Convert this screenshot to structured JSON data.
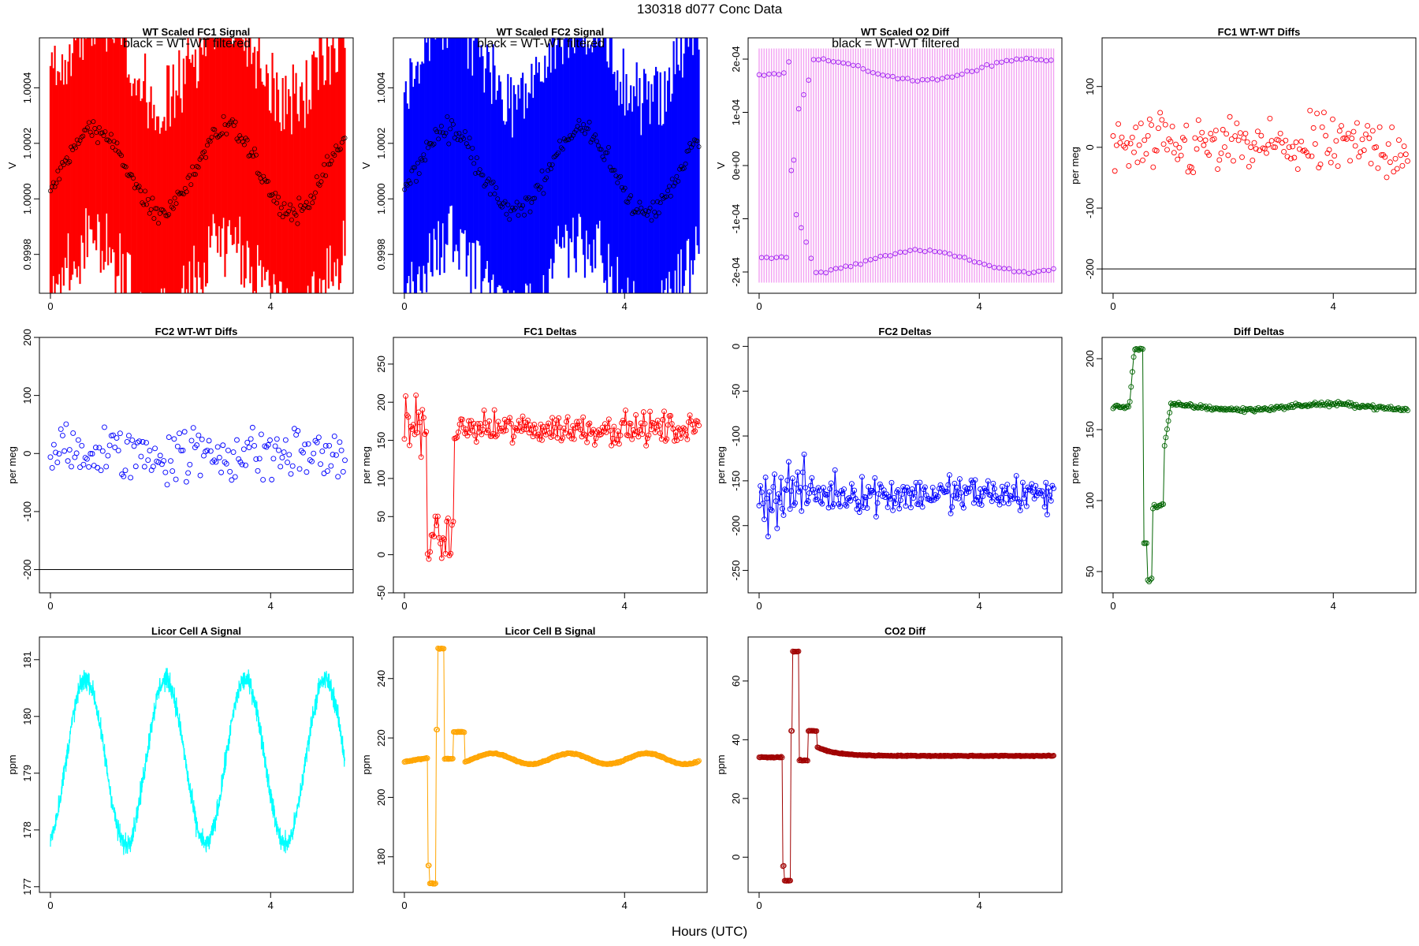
{
  "figure": {
    "title": "130318   d077   Conc Data",
    "xlabel": "Hours (UTC)"
  },
  "chart_data": [
    {
      "id": "p1",
      "type": "line",
      "title": "WT Scaled FC1 Signal",
      "subtitle": "black = WT-WT filtered",
      "ylabel": "V",
      "color": "#ff0000",
      "xlim": [
        -0.2,
        5.5
      ],
      "ylim": [
        0.99966,
        1.00058
      ],
      "xticks": [
        0,
        4
      ],
      "xtick_labels": [
        "0",
        "4"
      ],
      "yticks": [
        0.9998,
        1.0,
        1.0002,
        1.0004
      ],
      "ytick_labels": [
        "0.9998",
        "1.0000",
        "1.0002",
        "1.0004"
      ],
      "x_range": [
        0,
        5.35
      ],
      "signal": "noise_band",
      "base": 1.0001,
      "wave_amp": 0.00015,
      "wave_period": 2.4,
      "wave_phase": 0.2,
      "noise_amp": 0.00045,
      "marker_color": "#000000",
      "n": 200
    },
    {
      "id": "p2",
      "type": "line",
      "title": "WT Scaled FC2 Signal",
      "subtitle": "black = WT-WT filtered",
      "ylabel": "V",
      "color": "#0000ff",
      "xlim": [
        -0.2,
        5.5
      ],
      "ylim": [
        0.99966,
        1.00058
      ],
      "xticks": [
        0,
        4
      ],
      "xtick_labels": [
        "0",
        "4"
      ],
      "yticks": [
        0.9998,
        1.0,
        1.0002,
        1.0004
      ],
      "ytick_labels": [
        "0.9998",
        "1.0000",
        "1.0002",
        "1.0004"
      ],
      "x_range": [
        0,
        5.35
      ],
      "signal": "noise_band",
      "base": 1.0001,
      "wave_amp": 0.00015,
      "wave_period": 2.4,
      "wave_phase": 0.2,
      "noise_amp": 0.00045,
      "marker_color": "#000000",
      "n": 200
    },
    {
      "id": "p3",
      "type": "scatter",
      "title": "WT Scaled O2 Diff",
      "subtitle": "black = WT-WT filtered",
      "ylabel": "V",
      "color": "#ee82ee",
      "xlim": [
        -0.2,
        5.5
      ],
      "ylim": [
        -0.00024,
        0.00024
      ],
      "xticks": [
        0,
        4
      ],
      "xtick_labels": [
        "0",
        "4"
      ],
      "yticks": [
        -0.0002,
        -0.0001,
        0,
        0.0001,
        0.0002
      ],
      "ytick_labels": [
        "-2e-04",
        "-1e-04",
        "0e+00",
        "1e-04",
        "2e-04"
      ],
      "x_range": [
        0,
        5.35
      ],
      "signal": "o2diff",
      "marker_color": "#a020f0",
      "n": 120
    },
    {
      "id": "p4",
      "type": "scatter",
      "title": "FC1 WT-WT Diffs",
      "ylabel": "per meg",
      "color": "#ff0000",
      "xlim": [
        -0.2,
        5.5
      ],
      "ylim": [
        -240,
        180
      ],
      "xticks": [
        0,
        4
      ],
      "xtick_labels": [
        "0",
        "4"
      ],
      "yticks": [
        -200,
        -100,
        0,
        100
      ],
      "ytick_labels": [
        "-200",
        "-100",
        "0",
        "100"
      ],
      "hline": -200,
      "x_range": [
        0,
        5.35
      ],
      "signal": "scatter_noise",
      "base": 0,
      "noise_amp": 75,
      "n": 170
    },
    {
      "id": "p5",
      "type": "scatter",
      "title": "FC2 WT-WT Diffs",
      "ylabel": "per meg",
      "color": "#0000ff",
      "xlim": [
        -0.2,
        5.5
      ],
      "ylim": [
        -240,
        200
      ],
      "xticks": [
        0,
        4
      ],
      "xtick_labels": [
        "0",
        "4"
      ],
      "yticks": [
        -200,
        -100,
        0,
        100,
        200
      ],
      "ytick_labels": [
        "-200",
        "-100",
        "0",
        "100",
        "200"
      ],
      "hline": -200,
      "x_range": [
        0,
        5.35
      ],
      "signal": "scatter_noise",
      "base": 0,
      "noise_amp": 75,
      "n": 170
    },
    {
      "id": "p6",
      "type": "line",
      "title": "FC1 Deltas",
      "ylabel": "per meg",
      "color": "#ff0000",
      "xlim": [
        -0.2,
        5.5
      ],
      "ylim": [
        -50,
        285
      ],
      "xticks": [
        0,
        4
      ],
      "xtick_labels": [
        "0",
        "4"
      ],
      "yticks": [
        -50,
        0,
        50,
        100,
        150,
        200,
        250
      ],
      "ytick_labels": [
        "-50",
        "0",
        "50",
        "100",
        "150",
        "200",
        "250"
      ],
      "x_range": [
        0,
        5.35
      ],
      "signal": "deltas",
      "base": 165,
      "noise_amp": 30,
      "early_amp": 60,
      "dip_value": 20,
      "n": 230
    },
    {
      "id": "p7",
      "type": "line",
      "title": "FC2 Deltas",
      "ylabel": "per meg",
      "color": "#0000ff",
      "xlim": [
        -0.2,
        5.5
      ],
      "ylim": [
        -275,
        10
      ],
      "xticks": [
        0,
        4
      ],
      "xtick_labels": [
        "0",
        "4"
      ],
      "yticks": [
        -250,
        -200,
        -150,
        -100,
        -50,
        0
      ],
      "ytick_labels": [
        "-250",
        "-200",
        "-150",
        "-100",
        "-50",
        "0"
      ],
      "x_range": [
        0,
        5.35
      ],
      "signal": "deltas",
      "base": -165,
      "noise_amp": 30,
      "early_amp": 60,
      "dip_value": -160,
      "n": 230
    },
    {
      "id": "p8",
      "type": "line",
      "title": "Diff Deltas",
      "ylabel": "per meg",
      "color": "#006400",
      "xlim": [
        -0.2,
        5.5
      ],
      "ylim": [
        35,
        215
      ],
      "xticks": [
        0,
        4
      ],
      "xtick_labels": [
        "0",
        "4"
      ],
      "yticks": [
        50,
        100,
        150,
        200
      ],
      "ytick_labels": [
        "50",
        "100",
        "150",
        "200"
      ],
      "x_range": [
        0,
        5.35
      ],
      "signal": "diffdeltas",
      "n": 230
    },
    {
      "id": "p9",
      "type": "line",
      "title": "Licor Cell A Signal",
      "ylabel": "ppm",
      "color": "#00ffff",
      "xlim": [
        -0.2,
        5.5
      ],
      "ylim": [
        176.9,
        181.4
      ],
      "xticks": [
        0,
        4
      ],
      "xtick_labels": [
        "0",
        "4"
      ],
      "yticks": [
        177,
        178,
        179,
        180,
        181
      ],
      "ytick_labels": [
        "177",
        "178",
        "179",
        "180",
        "181"
      ],
      "x_range": [
        0,
        5.35
      ],
      "signal": "licorA",
      "n": 1400
    },
    {
      "id": "p10",
      "type": "line",
      "title": "Licor Cell B Signal",
      "ylabel": "ppm",
      "color": "#ffa500",
      "xlim": [
        -0.2,
        5.5
      ],
      "ylim": [
        168,
        254
      ],
      "xticks": [
        0,
        4
      ],
      "xtick_labels": [
        "0",
        "4"
      ],
      "yticks": [
        180,
        200,
        220,
        240
      ],
      "ytick_labels": [
        "180",
        "200",
        "220",
        "240"
      ],
      "x_range": [
        0,
        5.35
      ],
      "signal": "licorB",
      "n": 360
    },
    {
      "id": "p11",
      "type": "line",
      "title": "CO2 Diff",
      "ylabel": "ppm",
      "color": "#a00000",
      "xlim": [
        -0.2,
        5.5
      ],
      "ylim": [
        -12,
        75
      ],
      "xticks": [
        0,
        4
      ],
      "xtick_labels": [
        "0",
        "4"
      ],
      "yticks": [
        0,
        20,
        40,
        60
      ],
      "ytick_labels": [
        "0",
        "20",
        "40",
        "60"
      ],
      "x_range": [
        0,
        5.35
      ],
      "signal": "co2diff",
      "n": 360
    }
  ]
}
